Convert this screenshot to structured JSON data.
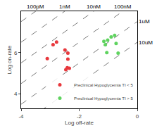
{
  "chart_data": {
    "type": "scatter",
    "x_label": "Log off-rate",
    "y_label": "Log on-rate",
    "xlim": [
      -4,
      0
    ],
    "ylim": [
      3.3,
      8
    ],
    "xticks": [
      -4,
      -2,
      0
    ],
    "yticks": [
      4,
      6
    ],
    "grid": false,
    "legend": "bottom right",
    "series": [
      {
        "name": "Preclinical Hypoglycemia TI < 5",
        "color": "#e8383d",
        "marker": "circle",
        "x": [
          -3.1,
          -2.9,
          -2.78,
          -2.49,
          -2.39,
          -2.39,
          -2.41,
          -2.46,
          -2.34
        ],
        "values": [
          5.71,
          6.38,
          6.51,
          6.13,
          5.97,
          5.68,
          5.27,
          5.17,
          5.24
        ]
      },
      {
        "name": "Preclinical Hypoglycemia TI > 5",
        "color": "#5fd35f",
        "marker": "circle",
        "x": [
          -1.15,
          -1.1,
          -1.02,
          -0.9,
          -0.73,
          -0.78,
          -1.05,
          -0.66
        ],
        "values": [
          6.54,
          6.38,
          6.6,
          6.76,
          6.44,
          6.83,
          6.0,
          5.97
        ]
      }
    ],
    "reference_lines": [
      {
        "label": "100pM",
        "x": [
          -4,
          0
        ],
        "values": [
          7.5,
          11.5
        ],
        "line_style": "dash",
        "color": "#555555"
      },
      {
        "label": "1nM",
        "x": [
          -4,
          0
        ],
        "values": [
          6.5,
          10.5
        ],
        "line_style": "dash",
        "color": "#555555"
      },
      {
        "label": "10nM",
        "x": [
          -4,
          0
        ],
        "values": [
          5.5,
          9.5
        ],
        "line_style": "dash",
        "color": "#555555"
      },
      {
        "label": "100nM",
        "x": [
          -4,
          0
        ],
        "values": [
          4.5,
          8.5
        ],
        "line_style": "dash",
        "color": "#555555"
      },
      {
        "label": "1uM",
        "x": [
          -4,
          0
        ],
        "values": [
          3.5,
          7.5
        ],
        "line_style": "dash",
        "color": "#555555"
      },
      {
        "label": "10uM",
        "x": [
          -4,
          0
        ],
        "values": [
          2.5,
          6.5
        ],
        "line_style": "dash",
        "color": "#555555"
      }
    ]
  }
}
